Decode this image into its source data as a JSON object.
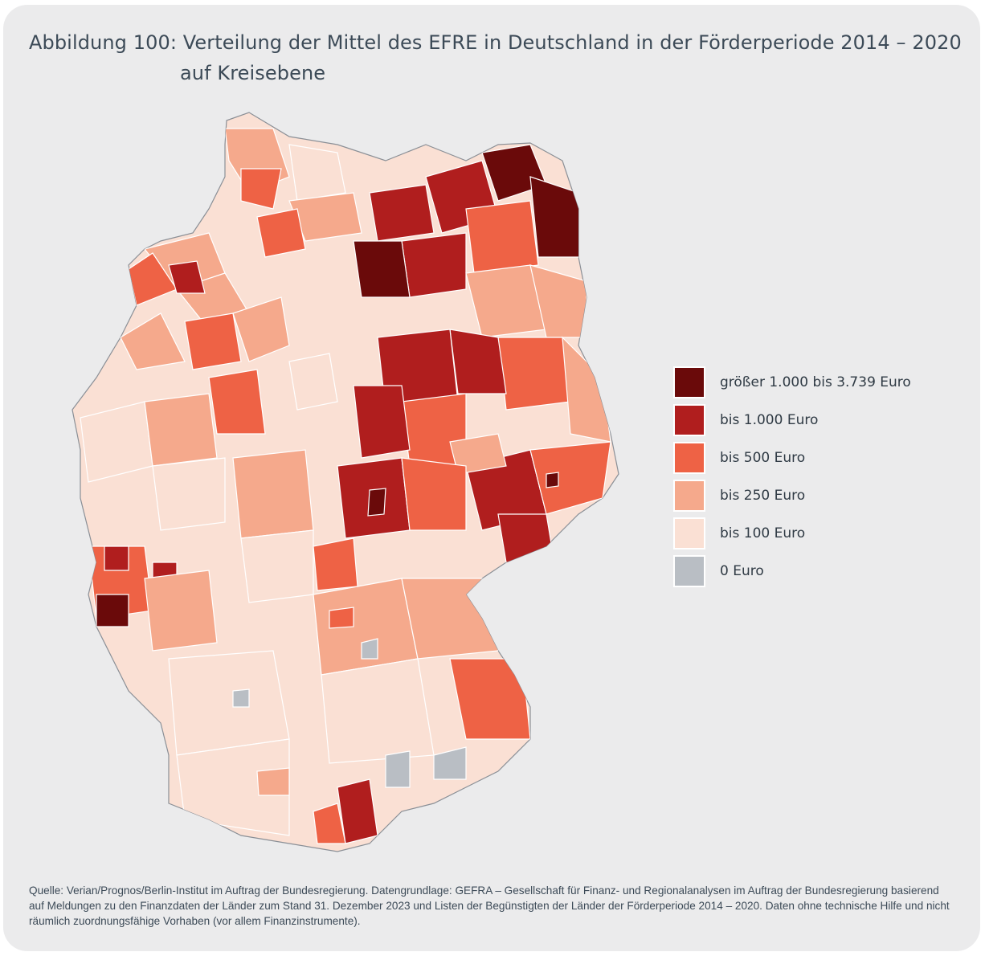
{
  "figure": {
    "title_line1": "Abbildung 100: Verteilung der Mittel des EFRE in Deutschland in der Förderperiode 2014 – 2020",
    "title_line2": "auf Kreisebene"
  },
  "map": {
    "region": "Germany",
    "unit_level": "Kreisebene"
  },
  "legend": {
    "items": [
      {
        "label": "größer 1.000 bis 3.739 Euro",
        "color": "#6a0a0a"
      },
      {
        "label": "bis 1.000 Euro",
        "color": "#b01e1e"
      },
      {
        "label": "bis 500 Euro",
        "color": "#ee6245"
      },
      {
        "label": "bis 250 Euro",
        "color": "#f5a98c"
      },
      {
        "label": "bis 100 Euro",
        "color": "#fae0d4"
      },
      {
        "label": "0 Euro",
        "color": "#b9bec4"
      }
    ]
  },
  "source": {
    "text": "Quelle: Verian/Prognos/Berlin-Institut im Auftrag der Bundesregierung. Datengrundlage: GEFRA – Gesellschaft für Finanz- und Regionalanalysen im Auftrag der Bundesregierung basierend auf Meldungen zu den Finanzdaten der Länder zum Stand 31. Dezember 2023 und Listen der Begünstigten der Länder der Förderperiode 2014 – 2020. Daten ohne technische Hilfe und nicht räumlich zuordnungsfähige Vorhaben (vor allem Finanzinstrumente)."
  }
}
